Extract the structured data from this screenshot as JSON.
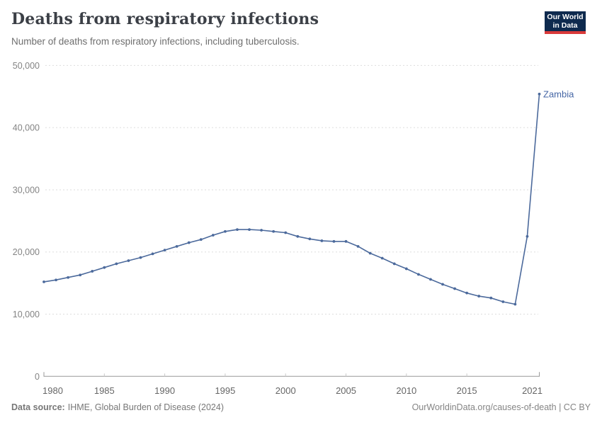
{
  "header": {
    "title": "Deaths from respiratory infections",
    "subtitle": "Number of deaths from respiratory infections, including tuberculosis.",
    "logo_line1": "Our World",
    "logo_line2": "in Data"
  },
  "footer": {
    "source_label": "Data source:",
    "source_text": "IHME, Global Burden of Disease (2024)",
    "attribution": "OurWorldinData.org/causes-of-death | CC BY"
  },
  "colors": {
    "line": "#4C6A9C",
    "entity_label": "#4566a5",
    "grid": "#dddddd",
    "axis": "#999999",
    "tick": "#c8c8c8",
    "x_tick_text": "#666666",
    "y_tick_text": "#848484",
    "logo_bg": "#0e2a4e",
    "logo_stripe": "#d93a3a"
  },
  "chart_data": {
    "type": "line",
    "title": "Deaths from respiratory infections",
    "subtitle": "Number of deaths from respiratory infections, including tuberculosis.",
    "xlabel": "",
    "ylabel": "",
    "grid": "horizontal-dashed",
    "legend_position": "end-of-line-label",
    "ylim": [
      0,
      50000
    ],
    "yticks": [
      0,
      10000,
      20000,
      30000,
      40000,
      50000
    ],
    "ytick_labels": [
      "0",
      "10,000",
      "20,000",
      "30,000",
      "40,000",
      "50,000"
    ],
    "xticks": [
      1980,
      1985,
      1990,
      1995,
      2000,
      2005,
      2010,
      2015,
      2021
    ],
    "xtick_labels": [
      "1980",
      "1985",
      "1990",
      "1995",
      "2000",
      "2005",
      "2010",
      "2015",
      "2021"
    ],
    "x": [
      1980,
      1981,
      1982,
      1983,
      1984,
      1985,
      1986,
      1987,
      1988,
      1989,
      1990,
      1991,
      1992,
      1993,
      1994,
      1995,
      1996,
      1997,
      1998,
      1999,
      2000,
      2001,
      2002,
      2003,
      2004,
      2005,
      2006,
      2007,
      2008,
      2009,
      2010,
      2011,
      2012,
      2013,
      2014,
      2015,
      2016,
      2017,
      2018,
      2019,
      2020,
      2021
    ],
    "series": [
      {
        "name": "Zambia",
        "values": [
          15200,
          15500,
          15900,
          16300,
          16900,
          17500,
          18100,
          18600,
          19100,
          19700,
          20300,
          20900,
          21500,
          22000,
          22700,
          23300,
          23600,
          23600,
          23500,
          23300,
          23100,
          22500,
          22100,
          21800,
          21700,
          21700,
          20900,
          19800,
          19000,
          18100,
          17300,
          16400,
          15600,
          14800,
          14100,
          13400,
          12900,
          12600,
          12000,
          11600,
          22500,
          45400
        ]
      }
    ]
  }
}
